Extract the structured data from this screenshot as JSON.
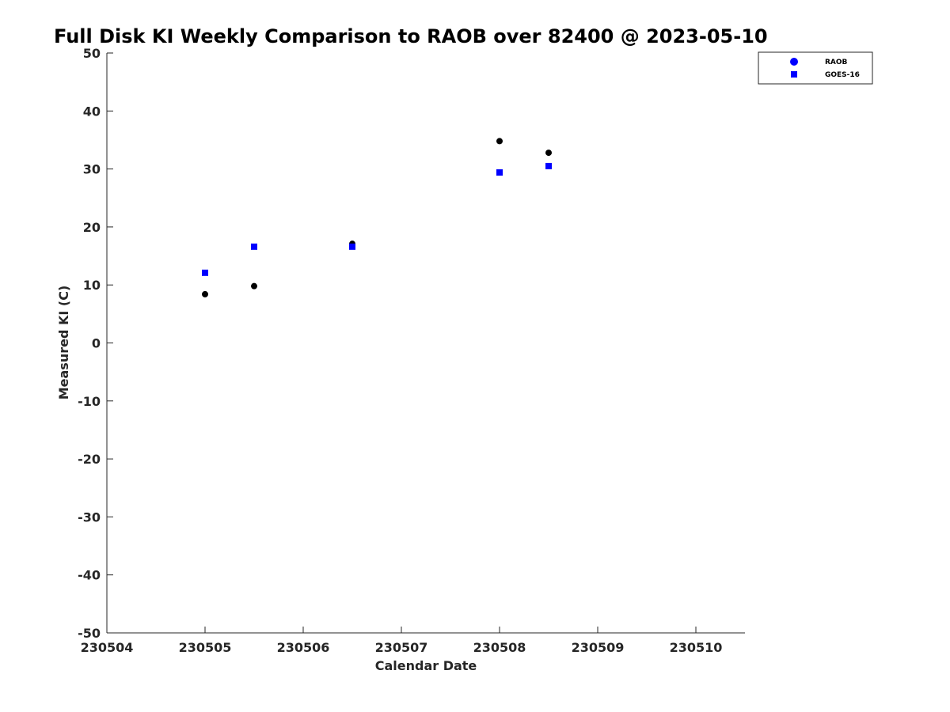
{
  "chart_data": {
    "type": "scatter",
    "title": "Full Disk KI Weekly Comparison to RAOB over 82400 @ 2023-05-10",
    "xlabel": "Calendar Date",
    "ylabel": "Measured KI (C)",
    "xlim": [
      230504,
      230510.5
    ],
    "ylim": [
      -50,
      50
    ],
    "x_ticks": [
      {
        "value": 230504,
        "label": "230504"
      },
      {
        "value": 230505,
        "label": "230505"
      },
      {
        "value": 230506,
        "label": "230506"
      },
      {
        "value": 230507,
        "label": "230507"
      },
      {
        "value": 230508,
        "label": "230508"
      },
      {
        "value": 230509,
        "label": "230509"
      },
      {
        "value": 230510,
        "label": "230510"
      }
    ],
    "y_ticks": [
      {
        "value": 50,
        "label": "50"
      },
      {
        "value": 40,
        "label": "40"
      },
      {
        "value": 30,
        "label": "30"
      },
      {
        "value": 20,
        "label": "20"
      },
      {
        "value": 10,
        "label": "10"
      },
      {
        "value": 0,
        "label": "0"
      },
      {
        "value": -10,
        "label": "-10"
      },
      {
        "value": -20,
        "label": "-20"
      },
      {
        "value": -30,
        "label": "-30"
      },
      {
        "value": -40,
        "label": "-40"
      },
      {
        "value": -50,
        "label": "-50"
      }
    ],
    "grid": false,
    "legend_position": "top-right",
    "series": [
      {
        "name": "RAOB",
        "marker": "circle",
        "color": "#000000",
        "legend_color": "#0000ff",
        "points": [
          {
            "x": 230505.0,
            "y": 8.4
          },
          {
            "x": 230505.5,
            "y": 9.8
          },
          {
            "x": 230506.5,
            "y": 17.1
          },
          {
            "x": 230508.0,
            "y": 34.8
          },
          {
            "x": 230508.5,
            "y": 32.8
          }
        ]
      },
      {
        "name": "GOES-16",
        "marker": "square",
        "color": "#0000ff",
        "legend_color": "#0000ff",
        "points": [
          {
            "x": 230505.0,
            "y": 12.1
          },
          {
            "x": 230505.5,
            "y": 16.6
          },
          {
            "x": 230506.5,
            "y": 16.6
          },
          {
            "x": 230508.0,
            "y": 29.4
          },
          {
            "x": 230508.5,
            "y": 30.5
          }
        ]
      }
    ]
  }
}
